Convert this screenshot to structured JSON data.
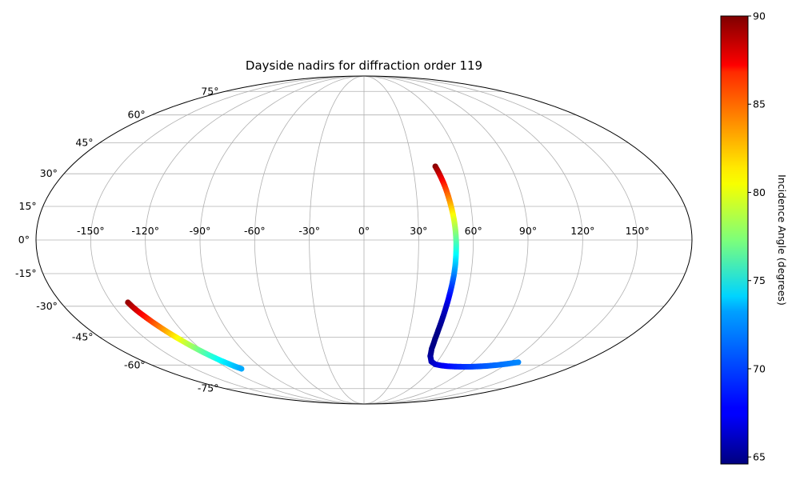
{
  "chart_data": {
    "type": "scatter",
    "projection": "mollweide",
    "title": "Dayside nadirs for diffraction order 119",
    "grid": true,
    "lon_ticks": [
      -150,
      -120,
      -90,
      -60,
      -30,
      0,
      30,
      60,
      90,
      120,
      150
    ],
    "lat_ticks": [
      -75,
      -60,
      -45,
      -30,
      -15,
      0,
      15,
      30,
      45,
      60,
      75
    ],
    "lon_tick_labels": [
      "-150°",
      "-120°",
      "-90°",
      "-60°",
      "-30°",
      "0°",
      "30°",
      "60°",
      "90°",
      "120°",
      "150°"
    ],
    "lat_tick_labels": [
      "-75°",
      "-60°",
      "-45°",
      "-30°",
      "-15°",
      "0°",
      "15°",
      "30°",
      "45°",
      "60°",
      "75°"
    ],
    "colorbar": {
      "label": "Incidence Angle (degrees)",
      "colormap": "jet",
      "range": [
        64.6,
        90
      ],
      "ticks": [
        65,
        70,
        75,
        80,
        85,
        90
      ],
      "tick_labels": [
        "65",
        "70",
        "75",
        "80",
        "85",
        "90"
      ]
    },
    "series": [
      {
        "points": [
          {
            "lon": -140.1,
            "lat": -28.2,
            "c": 89.5
          },
          {
            "lon": -139.0,
            "lat": -30.4,
            "c": 88.6
          },
          {
            "lon": -137.6,
            "lat": -32.7,
            "c": 87.6
          },
          {
            "lon": -135.9,
            "lat": -35.0,
            "c": 86.5
          },
          {
            "lon": -134.1,
            "lat": -37.5,
            "c": 85.2
          },
          {
            "lon": -132.4,
            "lat": -39.7,
            "c": 84.0
          },
          {
            "lon": -130.6,
            "lat": -42.0,
            "c": 82.7
          },
          {
            "lon": -128.8,
            "lat": -44.2,
            "c": 81.4
          },
          {
            "lon": -126.9,
            "lat": -46.4,
            "c": 80.1
          },
          {
            "lon": -125.0,
            "lat": -48.6,
            "c": 78.8
          },
          {
            "lon": -123.0,
            "lat": -50.8,
            "c": 77.6
          },
          {
            "lon": -120.9,
            "lat": -53.0,
            "c": 76.4
          },
          {
            "lon": -118.7,
            "lat": -55.1,
            "c": 75.3
          },
          {
            "lon": -116.3,
            "lat": -57.2,
            "c": 74.3
          },
          {
            "lon": -113.8,
            "lat": -59.0,
            "c": 73.4
          },
          {
            "lon": -111.2,
            "lat": -60.8,
            "c": 72.6
          },
          {
            "lon": -108.6,
            "lat": -62.2,
            "c": 72.0
          }
        ]
      },
      {
        "points": [
          {
            "lon": 43.8,
            "lat": 33.5,
            "c": 89.8
          },
          {
            "lon": 45.0,
            "lat": 30.5,
            "c": 88.6
          },
          {
            "lon": 46.0,
            "lat": 27.5,
            "c": 87.3
          },
          {
            "lon": 46.9,
            "lat": 24.5,
            "c": 86.0
          },
          {
            "lon": 47.7,
            "lat": 21.0,
            "c": 84.6
          },
          {
            "lon": 48.5,
            "lat": 17.0,
            "c": 83.0
          },
          {
            "lon": 49.2,
            "lat": 13.0,
            "c": 81.4
          },
          {
            "lon": 49.8,
            "lat": 9.0,
            "c": 79.8
          },
          {
            "lon": 50.3,
            "lat": 4.0,
            "c": 78.0
          },
          {
            "lon": 50.6,
            "lat": -1.0,
            "c": 76.2
          },
          {
            "lon": 50.7,
            "lat": -6.0,
            "c": 74.5
          },
          {
            "lon": 50.7,
            "lat": -11.0,
            "c": 72.8
          },
          {
            "lon": 50.5,
            "lat": -16.0,
            "c": 71.0
          },
          {
            "lon": 50.1,
            "lat": -21.0,
            "c": 69.4
          },
          {
            "lon": 49.7,
            "lat": -26.0,
            "c": 67.9
          },
          {
            "lon": 49.3,
            "lat": -31.0,
            "c": 66.6
          },
          {
            "lon": 49.0,
            "lat": -36.0,
            "c": 65.6
          },
          {
            "lon": 48.8,
            "lat": -41.0,
            "c": 65.0
          },
          {
            "lon": 48.9,
            "lat": -46.0,
            "c": 64.7
          },
          {
            "lon": 49.6,
            "lat": -51.0,
            "c": 64.8
          },
          {
            "lon": 51.5,
            "lat": -55.0,
            "c": 65.2
          },
          {
            "lon": 55.0,
            "lat": -58.0,
            "c": 65.9
          },
          {
            "lon": 60.0,
            "lat": -59.6,
            "c": 66.6
          },
          {
            "lon": 66.0,
            "lat": -60.3,
            "c": 67.2
          },
          {
            "lon": 72.0,
            "lat": -60.7,
            "c": 67.8
          },
          {
            "lon": 78.0,
            "lat": -60.9,
            "c": 68.3
          },
          {
            "lon": 85.0,
            "lat": -61.0,
            "c": 68.8
          },
          {
            "lon": 92.0,
            "lat": -61.0,
            "c": 69.3
          },
          {
            "lon": 99.0,
            "lat": -60.8,
            "c": 69.7
          },
          {
            "lon": 106.0,
            "lat": -60.5,
            "c": 70.1
          },
          {
            "lon": 113.0,
            "lat": -60.0,
            "c": 70.5
          },
          {
            "lon": 120.0,
            "lat": -59.3,
            "c": 70.8
          },
          {
            "lon": 127.0,
            "lat": -58.4,
            "c": 71.1
          }
        ]
      }
    ]
  }
}
